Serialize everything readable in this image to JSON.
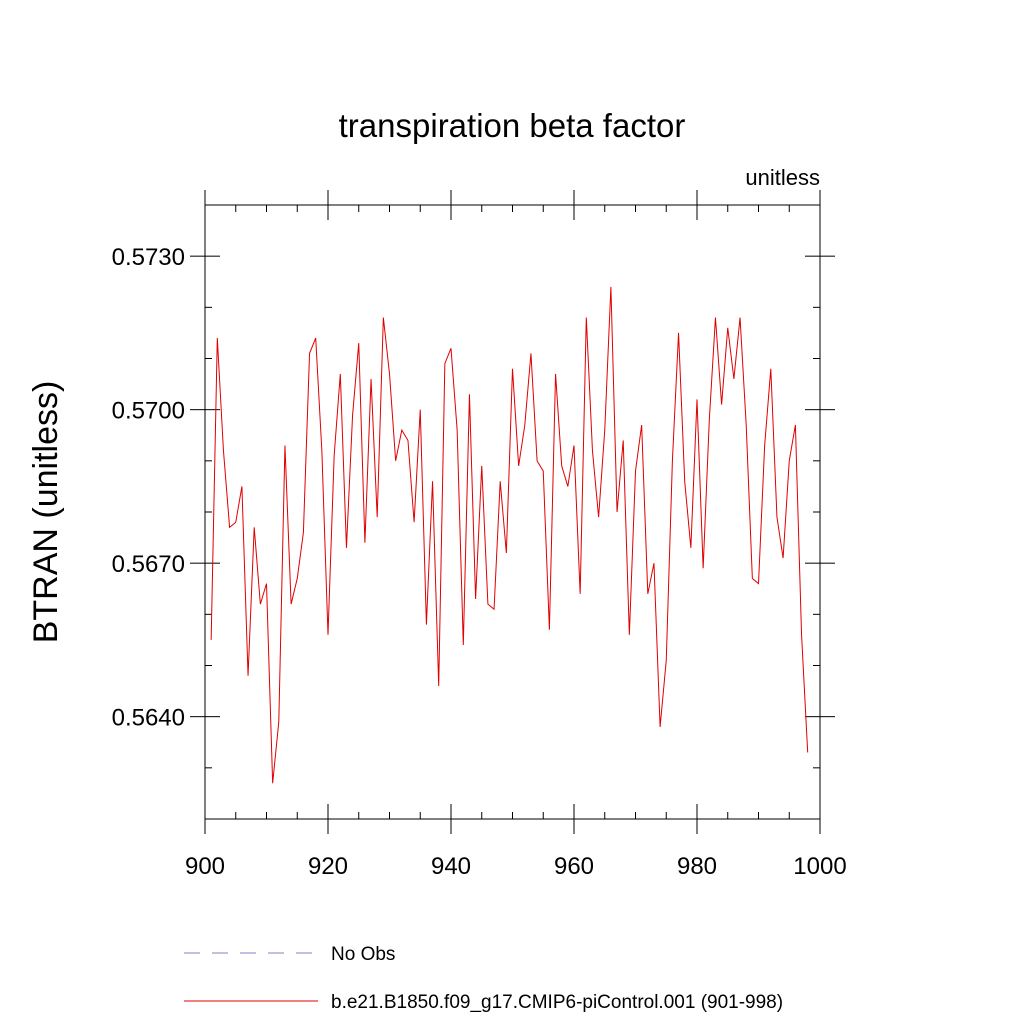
{
  "chart_data": {
    "type": "line",
    "title": "transpiration beta factor",
    "units_label": "unitless",
    "xlabel": "",
    "ylabel": "BTRAN  (unitless)",
    "xlim": [
      900,
      1000
    ],
    "ylim": [
      0.562,
      0.574
    ],
    "x_ticks": [
      900,
      920,
      940,
      960,
      980,
      1000
    ],
    "x_tick_labels": [
      "900",
      "920",
      "940",
      "960",
      "980",
      "1000"
    ],
    "y_ticks": [
      0.564,
      0.567,
      0.57,
      0.573
    ],
    "y_tick_labels": [
      "0.5640",
      "0.5670",
      "0.5700",
      "0.5730"
    ],
    "grid": false,
    "legend_position": "bottom",
    "series": [
      {
        "name": "No Obs",
        "style": "dashed",
        "color": "#8080c0",
        "x": [],
        "y": []
      },
      {
        "name": "b.e21.B1850.f09_g17.CMIP6-piControl.001 (901-998)",
        "style": "solid",
        "color": "#e00000",
        "x": [
          901,
          902,
          903,
          904,
          905,
          906,
          907,
          908,
          909,
          910,
          911,
          912,
          913,
          914,
          915,
          916,
          917,
          918,
          919,
          920,
          921,
          922,
          923,
          924,
          925,
          926,
          927,
          928,
          929,
          930,
          931,
          932,
          933,
          934,
          935,
          936,
          937,
          938,
          939,
          940,
          941,
          942,
          943,
          944,
          945,
          946,
          947,
          948,
          949,
          950,
          951,
          952,
          953,
          954,
          955,
          956,
          957,
          958,
          959,
          960,
          961,
          962,
          963,
          964,
          965,
          966,
          967,
          968,
          969,
          970,
          971,
          972,
          973,
          974,
          975,
          976,
          977,
          978,
          979,
          980,
          981,
          982,
          983,
          984,
          985,
          986,
          987,
          988,
          989,
          990,
          991,
          992,
          993,
          994,
          995,
          996,
          997,
          998
        ],
        "y": [
          0.5655,
          0.5714,
          0.5692,
          0.5677,
          0.5678,
          0.5685,
          0.5648,
          0.5677,
          0.5662,
          0.5666,
          0.5627,
          0.5639,
          0.5693,
          0.5662,
          0.5667,
          0.5676,
          0.5711,
          0.5714,
          0.5692,
          0.5656,
          0.5691,
          0.5707,
          0.5673,
          0.5699,
          0.5713,
          0.5674,
          0.5706,
          0.5679,
          0.5718,
          0.5707,
          0.569,
          0.5696,
          0.5694,
          0.5678,
          0.57,
          0.5658,
          0.5686,
          0.5646,
          0.5709,
          0.5712,
          0.5696,
          0.5654,
          0.5703,
          0.5663,
          0.5689,
          0.5662,
          0.5661,
          0.5686,
          0.5672,
          0.5708,
          0.5689,
          0.5697,
          0.5711,
          0.569,
          0.5688,
          0.5657,
          0.5707,
          0.5689,
          0.5685,
          0.5693,
          0.5664,
          0.5718,
          0.5692,
          0.5679,
          0.5696,
          0.5724,
          0.568,
          0.5694,
          0.5656,
          0.5688,
          0.5697,
          0.5664,
          0.567,
          0.5638,
          0.5651,
          0.569,
          0.5715,
          0.5686,
          0.5673,
          0.5702,
          0.5669,
          0.5698,
          0.5718,
          0.5701,
          0.5716,
          0.5706,
          0.5718,
          0.5697,
          0.5667,
          0.5666,
          0.5693,
          0.5708,
          0.5679,
          0.5671,
          0.569,
          0.5697,
          0.5656,
          0.5633
        ]
      }
    ]
  }
}
